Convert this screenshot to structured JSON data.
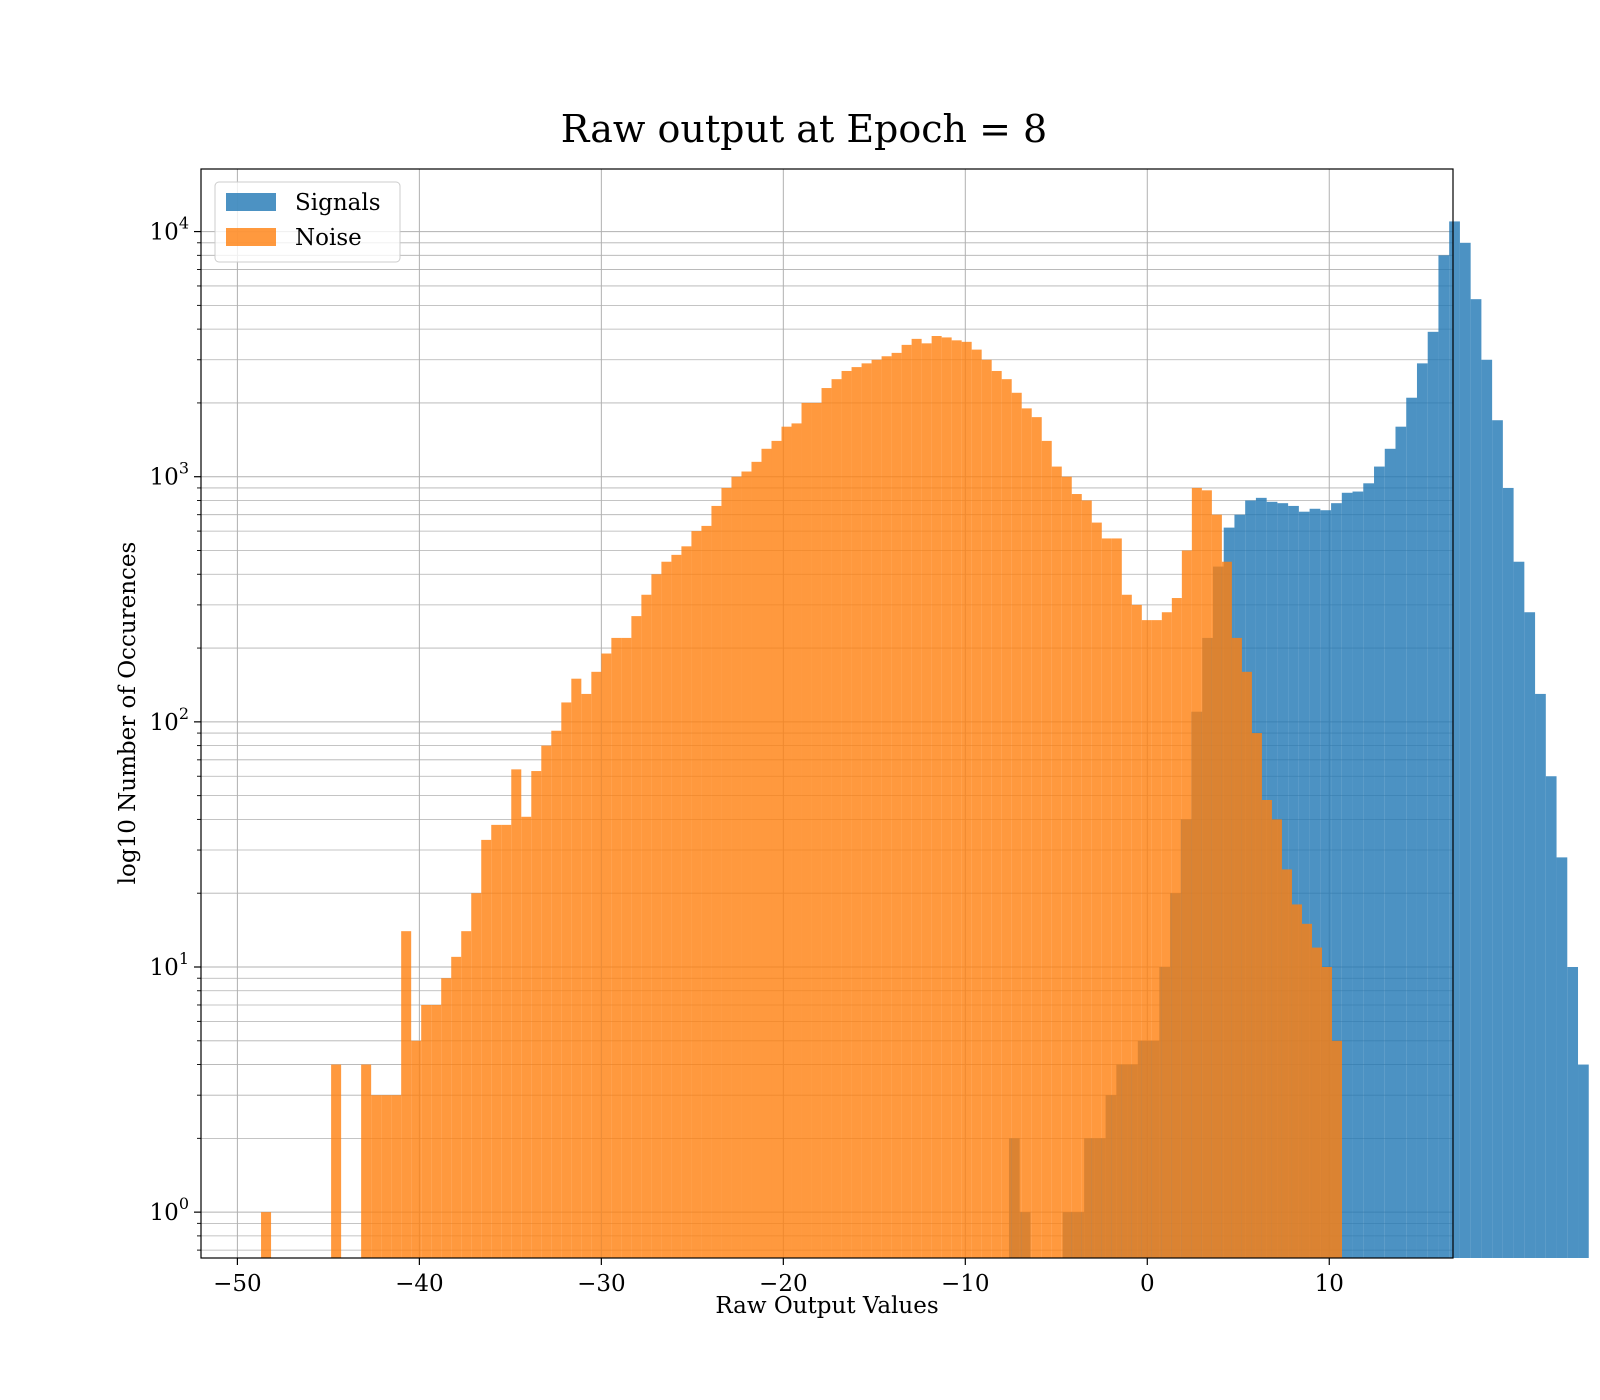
{
  "chart_data": {
    "type": "bar",
    "subtype": "histogram",
    "title": "Raw output at Epoch = 8",
    "xlabel": "Raw Output Values",
    "ylabel": "log10 Number of Occurences",
    "yscale": "log",
    "xlim": [
      -52,
      16.8
    ],
    "ylim": [
      0.65,
      18000
    ],
    "grid": true,
    "legend_position": "top-left",
    "x_ticks": [
      -50,
      -40,
      -30,
      -20,
      -10,
      0,
      10
    ],
    "x_tick_labels": [
      "−50",
      "−40",
      "−30",
      "−20",
      "−10",
      "0",
      "10"
    ],
    "y_ticks": [
      {
        "value": 1,
        "base": "10",
        "exp": "0"
      },
      {
        "value": 10,
        "base": "10",
        "exp": "1"
      },
      {
        "value": 100,
        "base": "10",
        "exp": "2"
      },
      {
        "value": 1000,
        "base": "10",
        "exp": "3"
      },
      {
        "value": 10000,
        "base": "10",
        "exp": "4"
      }
    ],
    "series": [
      {
        "name": "Signals",
        "color": "#1f77b4",
        "opacity": 0.8,
        "bin_start": -7.6,
        "bin_width": 0.59,
        "values": [
          2,
          1,
          0,
          0,
          0,
          1,
          1,
          2,
          2,
          3,
          4,
          4,
          5,
          5,
          10,
          20,
          40,
          110,
          220,
          430,
          620,
          700,
          800,
          820,
          790,
          780,
          760,
          720,
          740,
          730,
          780,
          860,
          870,
          940,
          1100,
          1300,
          1600,
          2100,
          2900,
          3900,
          8000,
          11000,
          9000,
          5300,
          3000,
          1700,
          900,
          450,
          280,
          130,
          60,
          28,
          10,
          4
        ]
      },
      {
        "name": "Noise",
        "color": "#ff7f0e",
        "opacity": 0.8,
        "bin_start": -48.7,
        "bin_width": 0.55,
        "values": [
          1,
          0,
          0,
          0,
          0,
          0,
          0,
          4,
          0,
          0,
          4,
          3,
          3,
          3,
          14,
          5,
          7,
          7,
          9,
          11,
          14,
          20,
          33,
          38,
          38,
          64,
          41,
          63,
          80,
          92,
          120,
          150,
          130,
          160,
          190,
          220,
          220,
          270,
          330,
          400,
          450,
          480,
          520,
          600,
          630,
          760,
          900,
          1000,
          1050,
          1150,
          1300,
          1400,
          1600,
          1650,
          2000,
          2000,
          2300,
          2500,
          2700,
          2800,
          2900,
          3000,
          3100,
          3200,
          3450,
          3650,
          3500,
          3750,
          3700,
          3600,
          3550,
          3300,
          3000,
          2700,
          2500,
          2200,
          1900,
          1750,
          1400,
          1100,
          1000,
          850,
          800,
          650,
          560,
          560,
          330,
          300,
          260,
          260,
          280,
          320,
          500,
          900,
          880,
          700,
          450,
          220,
          160,
          90,
          48,
          40,
          25,
          18,
          15,
          12,
          10,
          5
        ]
      }
    ]
  }
}
